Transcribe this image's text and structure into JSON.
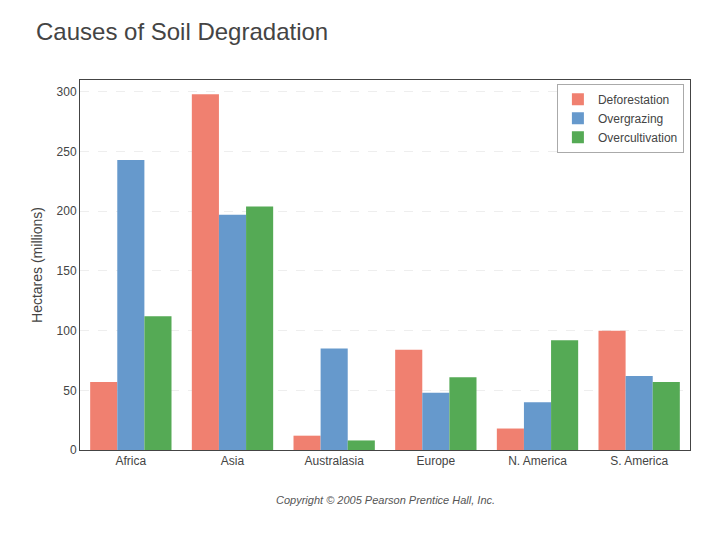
{
  "chart_data": {
    "type": "bar",
    "title": "Causes of Soil Degradation",
    "categories": [
      "Africa",
      "Asia",
      "Australasia",
      "Europe",
      "N. America",
      "S. America"
    ],
    "series": [
      {
        "name": "Deforestation",
        "color": "#F08070",
        "values": [
          57,
          298,
          12,
          84,
          18,
          100
        ]
      },
      {
        "name": "Overgrazing",
        "color": "#6699CC",
        "values": [
          243,
          197,
          85,
          48,
          40,
          62
        ]
      },
      {
        "name": "Overcultivation",
        "color": "#55AA55",
        "values": [
          112,
          204,
          8,
          61,
          92,
          57
        ]
      }
    ],
    "ylabel": "Hectares (millions)",
    "ylim": [
      0,
      310
    ],
    "yticks": [
      0,
      50,
      100,
      150,
      200,
      250,
      300
    ],
    "grid": true,
    "legend": "upper right",
    "annotations": [
      "Copyright © 2005 Pearson Prentice Hall, Inc."
    ]
  }
}
